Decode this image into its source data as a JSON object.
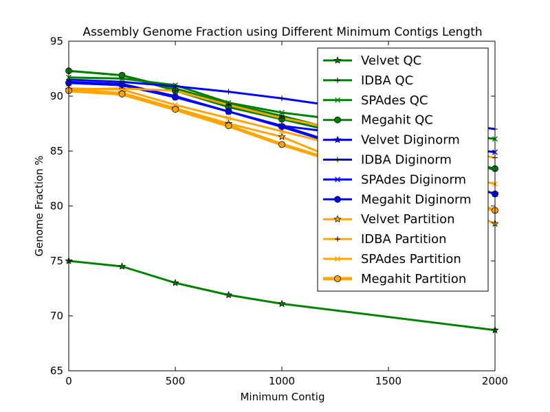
{
  "chart_data": {
    "type": "line",
    "title": "Assembly Genome Fraction using Different Minimum Contigs Length",
    "xlabel": "Minimum Contig",
    "ylabel": "Genome Fraction %",
    "xlim": [
      0,
      2000
    ],
    "ylim": [
      65,
      95
    ],
    "x_ticks": [
      "0",
      "500",
      "1000",
      "1500",
      "2000"
    ],
    "y_ticks": [
      "65",
      "70",
      "75",
      "80",
      "85",
      "90",
      "95"
    ],
    "grid": false,
    "legend_position": "top-right",
    "series": [
      {
        "name": "Velvet QC",
        "color": "#008000",
        "marker": "star",
        "width": 3,
        "x": [
          0,
          250,
          500,
          750,
          1000,
          2000
        ],
        "y": [
          75.0,
          74.5,
          73.0,
          71.9,
          71.1,
          68.7
        ]
      },
      {
        "name": "IDBA QC",
        "color": "#008000",
        "marker": "plus",
        "width": 3,
        "x": [
          0,
          250,
          500,
          750,
          1000,
          2000
        ],
        "y": [
          92.3,
          91.9,
          90.7,
          89.3,
          88.2,
          83.3
        ]
      },
      {
        "name": "SPAdes QC",
        "color": "#008000",
        "marker": "x",
        "width": 3,
        "x": [
          0,
          250,
          500,
          750,
          1000,
          2000
        ],
        "y": [
          91.7,
          91.6,
          91.0,
          89.4,
          88.5,
          86.1
        ]
      },
      {
        "name": "Megahit QC",
        "color": "#008000",
        "marker": "circle",
        "width": 3,
        "x": [
          0,
          250,
          500,
          750,
          1000,
          2000
        ],
        "y": [
          92.3,
          91.9,
          90.5,
          89.0,
          87.9,
          83.4
        ]
      },
      {
        "name": "Velvet Diginorm",
        "color": "#0000ff",
        "marker": "star",
        "width": 3,
        "x": [
          0,
          250,
          500,
          750,
          1000,
          2000
        ],
        "y": [
          91.2,
          91.0,
          89.9,
          88.6,
          87.3,
          81.1
        ]
      },
      {
        "name": "IDBA Diginorm",
        "color": "#0000ff",
        "marker": "plus",
        "width": 3,
        "x": [
          0,
          250,
          500,
          750,
          1000,
          2000
        ],
        "y": [
          91.5,
          91.3,
          90.9,
          90.4,
          89.8,
          87.0
        ]
      },
      {
        "name": "SPAdes Diginorm",
        "color": "#0000ff",
        "marker": "x",
        "width": 3,
        "x": [
          0,
          250,
          500,
          750,
          1000,
          2000
        ],
        "y": [
          91.3,
          91.1,
          90.0,
          88.6,
          87.3,
          84.9
        ]
      },
      {
        "name": "Megahit Diginorm",
        "color": "#0000ff",
        "marker": "circle",
        "width": 3,
        "x": [
          0,
          250,
          500,
          750,
          1000,
          2000
        ],
        "y": [
          91.2,
          91.0,
          89.9,
          88.6,
          87.2,
          81.1
        ]
      },
      {
        "name": "Velvet Partition",
        "color": "#ffa500",
        "marker": "star",
        "width": 3,
        "x": [
          0,
          250,
          500,
          750,
          1000,
          2000
        ],
        "y": [
          90.6,
          90.3,
          88.9,
          87.5,
          86.3,
          78.4
        ]
      },
      {
        "name": "IDBA Partition",
        "color": "#ffa500",
        "marker": "plus",
        "width": 3,
        "x": [
          0,
          250,
          500,
          750,
          1000,
          2000
        ],
        "y": [
          90.6,
          90.7,
          90.5,
          89.2,
          88.0,
          84.4
        ]
      },
      {
        "name": "SPAdes Partition",
        "color": "#ffa500",
        "marker": "x",
        "width": 3,
        "x": [
          0,
          250,
          500,
          750,
          1000,
          2000
        ],
        "y": [
          90.7,
          90.6,
          89.2,
          88.0,
          86.8,
          82.0
        ]
      },
      {
        "name": "Megahit Partition",
        "color": "#ffa500",
        "marker": "circle",
        "width": 5,
        "x": [
          0,
          250,
          500,
          750,
          1000,
          2000
        ],
        "y": [
          90.5,
          90.2,
          88.8,
          87.3,
          85.6,
          79.6
        ]
      }
    ]
  }
}
